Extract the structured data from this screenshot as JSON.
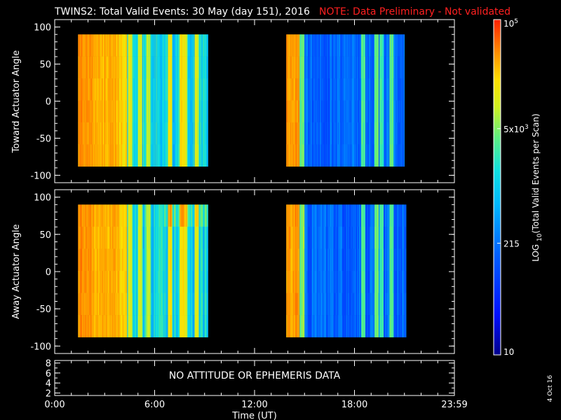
{
  "header": {
    "title": "TWINS2: Total Valid Events: 30 May (day 151), 2016",
    "note": "NOTE: Data Preliminary - Not validated",
    "note_color": "#ff2020"
  },
  "footer": {
    "date_stamp": "4 Oct 16",
    "no_data_message": "NO ATTITUDE OR EPHEMERIS DATA"
  },
  "chart_data": [
    {
      "type": "heatmap",
      "ylabel": "Toward Actuator Angle",
      "xlim": [
        0,
        24
      ],
      "ylim": [
        -110,
        110
      ],
      "yticks": [
        100,
        50,
        0,
        -50,
        -100
      ],
      "angle_range": [
        -88,
        90
      ],
      "data_intervals_hours": [
        [
          1.4,
          9.2
        ],
        [
          13.9,
          21.0
        ]
      ]
    },
    {
      "type": "heatmap",
      "ylabel": "Away Actuator Angle",
      "xlim": [
        0,
        24
      ],
      "ylim": [
        -110,
        110
      ],
      "yticks": [
        100,
        50,
        0,
        -50,
        -100
      ],
      "angle_range": [
        -88,
        90
      ],
      "data_intervals_hours": [
        [
          1.4,
          9.2
        ],
        [
          13.9,
          21.1
        ]
      ]
    },
    {
      "type": "line",
      "ylim": [
        1.5,
        8.5
      ],
      "yticks": [
        8,
        6,
        4,
        2
      ],
      "message": "NO ATTITUDE OR EPHEMERIS DATA"
    }
  ],
  "x_axis": {
    "title": "Time (UT)",
    "tick_labels": [
      "0:00",
      "6:00",
      "12:00",
      "18:00",
      "23:59"
    ],
    "tick_hours": [
      0,
      6,
      12,
      18,
      24
    ]
  },
  "colorbar": {
    "label": "LOG10(Total Valid Events per Scan)",
    "tick_labels": [
      {
        "mantissa": "10",
        "exp": "5",
        "value": 100000
      },
      {
        "mantissa": "5x10",
        "exp": "3",
        "value": 5000
      },
      {
        "mantissa": "215",
        "exp": "",
        "value": 215
      },
      {
        "mantissa": "10",
        "exp": "",
        "value": 10
      }
    ],
    "range": [
      10,
      100000
    ],
    "scale": "log"
  }
}
